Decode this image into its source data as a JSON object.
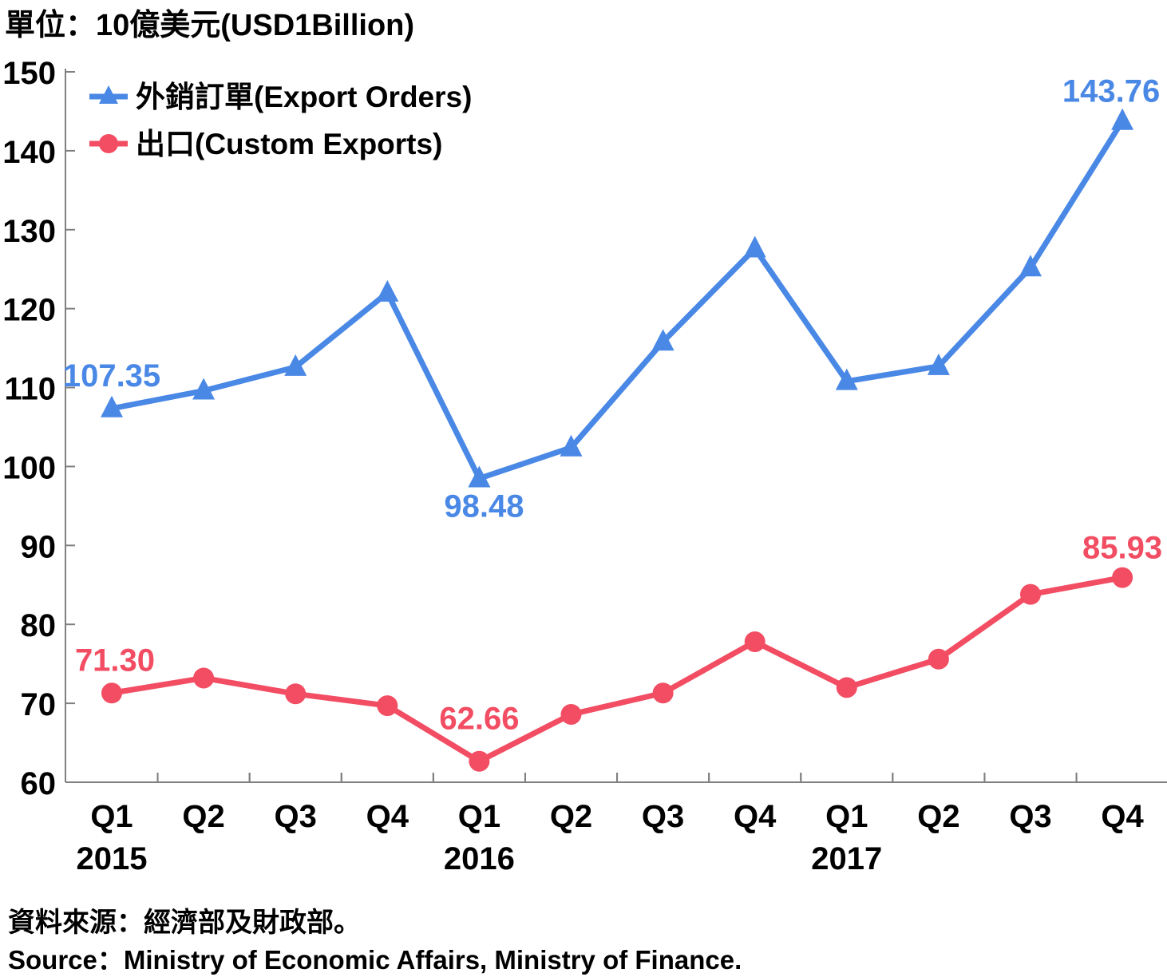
{
  "unit_label": "單位：10億美元(USD1Billion)",
  "source_cn": "資料來源：經濟部及財政部。",
  "source_en": "Source：Ministry of Economic Affairs, Ministry of Finance.",
  "colors": {
    "export_orders": "#4a88e6",
    "custom_exports": "#f24d62",
    "axis": "#7f7f7f"
  },
  "chart_data": {
    "type": "line",
    "x": [
      "Q1",
      "Q2",
      "Q3",
      "Q4",
      "Q1",
      "Q2",
      "Q3",
      "Q4",
      "Q1",
      "Q2",
      "Q3",
      "Q4"
    ],
    "years": [
      {
        "label": "2015",
        "index": 0
      },
      {
        "label": "2016",
        "index": 4
      },
      {
        "label": "2017",
        "index": 8
      }
    ],
    "ylim": [
      60,
      150
    ],
    "yticks": [
      60,
      70,
      80,
      90,
      100,
      110,
      120,
      130,
      140,
      150
    ],
    "legend": "top-left",
    "grid": false,
    "series": [
      {
        "name": "外銷訂單(Export Orders)",
        "marker": "triangle",
        "color": "#4a88e6",
        "values": [
          107.35,
          109.6,
          112.6,
          122.0,
          98.48,
          102.4,
          115.8,
          127.6,
          110.8,
          112.7,
          125.2,
          143.76
        ],
        "labels": [
          {
            "index": 0,
            "text": "107.35"
          },
          {
            "index": 4,
            "text": "98.48"
          },
          {
            "index": 11,
            "text": "143.76"
          }
        ]
      },
      {
        "name": "出口(Custom Exports)",
        "marker": "circle",
        "color": "#f24d62",
        "values": [
          71.3,
          73.2,
          71.2,
          69.7,
          62.66,
          68.6,
          71.3,
          77.8,
          72.0,
          75.6,
          83.8,
          85.93
        ],
        "labels": [
          {
            "index": 0,
            "text": "71.30"
          },
          {
            "index": 4,
            "text": "62.66"
          },
          {
            "index": 11,
            "text": "85.93"
          }
        ]
      }
    ]
  }
}
